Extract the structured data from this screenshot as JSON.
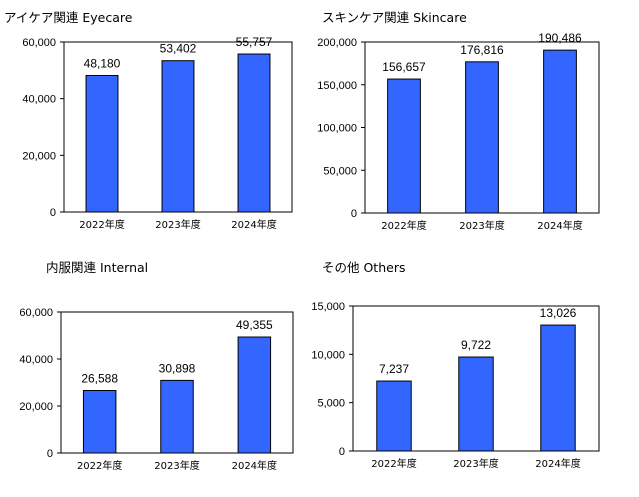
{
  "colors": {
    "bar": "#3366ff",
    "bar_edge": "#000000"
  },
  "chart_data": [
    {
      "type": "bar",
      "title": "アイケア関連 Eyecare",
      "categories": [
        "2022年度",
        "2023年度",
        "2024年度"
      ],
      "values": [
        48180,
        53402,
        55757
      ],
      "value_labels": [
        "48,180",
        "53,402",
        "55,757"
      ],
      "ylim": [
        0,
        60000
      ],
      "yticks": [
        0,
        20000,
        40000,
        60000
      ],
      "ytick_labels": [
        "0",
        "20,000",
        "40,000",
        "60,000"
      ],
      "xlabel": "",
      "ylabel": ""
    },
    {
      "type": "bar",
      "title": "スキンケア関連 Skincare",
      "categories": [
        "2022年度",
        "2023年度",
        "2024年度"
      ],
      "values": [
        156657,
        176816,
        190486
      ],
      "value_labels": [
        "156,657",
        "176,816",
        "190,486"
      ],
      "ylim": [
        0,
        200000
      ],
      "yticks": [
        0,
        50000,
        100000,
        150000,
        200000
      ],
      "ytick_labels": [
        "0",
        "50,000",
        "100,000",
        "150,000",
        "200,000"
      ],
      "xlabel": "",
      "ylabel": ""
    },
    {
      "type": "bar",
      "title": "内服関連 Internal",
      "categories": [
        "2022年度",
        "2023年度",
        "2024年度"
      ],
      "values": [
        26588,
        30898,
        49355
      ],
      "value_labels": [
        "26,588",
        "30,898",
        "49,355"
      ],
      "ylim": [
        0,
        60000
      ],
      "yticks": [
        0,
        20000,
        40000,
        60000
      ],
      "ytick_labels": [
        "0",
        "20,000",
        "40,000",
        "60,000"
      ],
      "xlabel": "",
      "ylabel": ""
    },
    {
      "type": "bar",
      "title": "その他 Others",
      "categories": [
        "2022年度",
        "2023年度",
        "2024年度"
      ],
      "values": [
        7237,
        9722,
        13026
      ],
      "value_labels": [
        "7,237",
        "9,722",
        "13,026"
      ],
      "ylim": [
        0,
        15000
      ],
      "yticks": [
        0,
        5000,
        10000,
        15000
      ],
      "ytick_labels": [
        "0",
        "5,000",
        "10,000",
        "15,000"
      ],
      "xlabel": "",
      "ylabel": ""
    }
  ]
}
